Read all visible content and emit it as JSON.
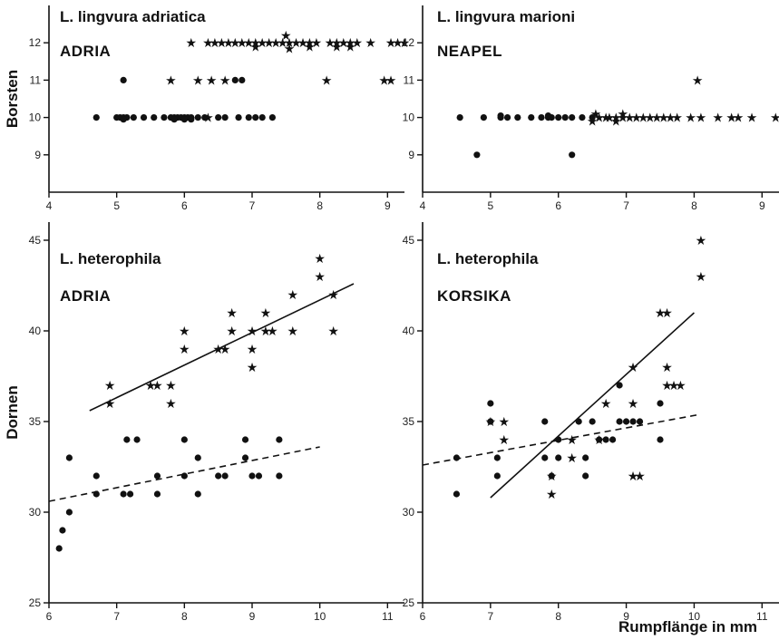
{
  "chart_data": [
    {
      "type": "scatter",
      "title": "L. lingvura adriatica",
      "subtitle": "ADRIA",
      "ylabel": "Borsten",
      "xlabel": "",
      "xlim": [
        4,
        9.25
      ],
      "ylim": [
        8,
        13
      ],
      "xticks": [
        4,
        5,
        6,
        7,
        8,
        9
      ],
      "yticks": [
        9,
        10,
        11,
        12
      ],
      "series": [
        {
          "marker": "circle",
          "points": [
            [
              4.7,
              10
            ],
            [
              5.0,
              10
            ],
            [
              5.05,
              10
            ],
            [
              5.1,
              10
            ],
            [
              5.15,
              10
            ],
            [
              5.25,
              10
            ],
            [
              5.4,
              10
            ],
            [
              5.55,
              10
            ],
            [
              5.7,
              10
            ],
            [
              5.8,
              10
            ],
            [
              5.85,
              10
            ],
            [
              5.9,
              10
            ],
            [
              5.95,
              10
            ],
            [
              6.0,
              10
            ],
            [
              6.05,
              10
            ],
            [
              6.1,
              10
            ],
            [
              6.2,
              10
            ],
            [
              6.3,
              10
            ],
            [
              6.5,
              10
            ],
            [
              6.6,
              10
            ],
            [
              6.8,
              10
            ],
            [
              6.95,
              10
            ],
            [
              7.05,
              10
            ],
            [
              7.15,
              10
            ],
            [
              7.3,
              10
            ],
            [
              5.1,
              11
            ],
            [
              6.75,
              11
            ],
            [
              6.85,
              11
            ],
            [
              5.1,
              9.95
            ],
            [
              5.85,
              9.95
            ],
            [
              6.0,
              9.95
            ],
            [
              6.1,
              9.95
            ]
          ]
        },
        {
          "marker": "star",
          "points": [
            [
              6.35,
              10
            ],
            [
              5.8,
              11
            ],
            [
              6.2,
              11
            ],
            [
              6.4,
              11
            ],
            [
              6.6,
              11
            ],
            [
              8.1,
              11
            ],
            [
              8.95,
              11
            ],
            [
              9.05,
              11
            ],
            [
              6.1,
              12
            ],
            [
              6.35,
              12
            ],
            [
              6.45,
              12
            ],
            [
              6.55,
              12
            ],
            [
              6.65,
              12
            ],
            [
              6.75,
              12
            ],
            [
              6.85,
              12
            ],
            [
              6.95,
              12
            ],
            [
              7.05,
              12
            ],
            [
              7.15,
              12
            ],
            [
              7.25,
              12
            ],
            [
              7.35,
              12
            ],
            [
              7.45,
              12
            ],
            [
              7.55,
              12
            ],
            [
              7.65,
              12
            ],
            [
              7.75,
              12
            ],
            [
              7.85,
              12
            ],
            [
              7.95,
              12
            ],
            [
              8.15,
              12
            ],
            [
              8.25,
              12
            ],
            [
              8.35,
              12
            ],
            [
              8.45,
              12
            ],
            [
              8.55,
              12
            ],
            [
              8.75,
              12
            ],
            [
              9.05,
              12
            ],
            [
              9.15,
              12
            ],
            [
              9.25,
              12
            ],
            [
              7.05,
              11.9
            ],
            [
              7.55,
              11.85
            ],
            [
              7.85,
              11.9
            ],
            [
              8.25,
              11.9
            ],
            [
              8.45,
              11.9
            ],
            [
              7.5,
              12.2
            ]
          ]
        }
      ]
    },
    {
      "type": "scatter",
      "title": "L. lingvura marioni",
      "subtitle": "NEAPEL",
      "ylabel": "",
      "xlabel": "",
      "xlim": [
        4,
        9.25
      ],
      "ylim": [
        8,
        13
      ],
      "xticks": [
        4,
        5,
        6,
        7,
        8,
        9
      ],
      "yticks": [
        9,
        10,
        11,
        12
      ],
      "series": [
        {
          "marker": "circle",
          "points": [
            [
              4.55,
              10
            ],
            [
              4.9,
              10
            ],
            [
              5.15,
              10
            ],
            [
              5.25,
              10
            ],
            [
              5.4,
              10
            ],
            [
              5.6,
              10
            ],
            [
              5.75,
              10
            ],
            [
              5.85,
              10
            ],
            [
              5.9,
              10
            ],
            [
              6.0,
              10
            ],
            [
              6.1,
              10
            ],
            [
              6.2,
              10
            ],
            [
              6.35,
              10
            ],
            [
              6.5,
              10
            ],
            [
              5.15,
              10.05
            ],
            [
              5.85,
              10.05
            ],
            [
              4.8,
              9
            ],
            [
              6.2,
              9
            ]
          ]
        },
        {
          "marker": "star",
          "points": [
            [
              6.6,
              10
            ],
            [
              6.7,
              10
            ],
            [
              6.75,
              10
            ],
            [
              6.85,
              10
            ],
            [
              6.95,
              10
            ],
            [
              7.05,
              10
            ],
            [
              7.15,
              10
            ],
            [
              7.25,
              10
            ],
            [
              7.35,
              10
            ],
            [
              7.45,
              10
            ],
            [
              7.55,
              10
            ],
            [
              7.65,
              10
            ],
            [
              7.75,
              10
            ],
            [
              7.95,
              10
            ],
            [
              8.1,
              10
            ],
            [
              8.35,
              10
            ],
            [
              8.55,
              10
            ],
            [
              8.65,
              10
            ],
            [
              8.85,
              10
            ],
            [
              9.2,
              10
            ],
            [
              6.5,
              9.9
            ],
            [
              6.85,
              9.9
            ],
            [
              6.55,
              10.1
            ],
            [
              6.95,
              10.1
            ],
            [
              8.05,
              11
            ]
          ]
        }
      ]
    },
    {
      "type": "scatter",
      "title": "L. heterophila",
      "subtitle": "ADRIA",
      "ylabel": "Dornen",
      "xlabel": "",
      "xlim": [
        6,
        11.25
      ],
      "ylim": [
        25,
        46
      ],
      "xticks": [
        6,
        7,
        8,
        9,
        10,
        11
      ],
      "yticks": [
        25,
        30,
        35,
        40,
        45
      ],
      "series": [
        {
          "marker": "circle",
          "points": [
            [
              6.15,
              28
            ],
            [
              6.2,
              29
            ],
            [
              6.3,
              30
            ],
            [
              6.3,
              33
            ],
            [
              6.7,
              32
            ],
            [
              6.7,
              31
            ],
            [
              7.1,
              31
            ],
            [
              7.2,
              31
            ],
            [
              7.15,
              34
            ],
            [
              7.3,
              34
            ],
            [
              7.6,
              31
            ],
            [
              7.6,
              32
            ],
            [
              8.0,
              32
            ],
            [
              8.0,
              34
            ],
            [
              8.2,
              31
            ],
            [
              8.2,
              33
            ],
            [
              8.5,
              32
            ],
            [
              8.6,
              32
            ],
            [
              8.9,
              34
            ],
            [
              8.9,
              33
            ],
            [
              9.0,
              32
            ],
            [
              9.1,
              32
            ],
            [
              9.4,
              32
            ],
            [
              9.4,
              34
            ]
          ]
        },
        {
          "marker": "star",
          "points": [
            [
              6.9,
              36
            ],
            [
              6.9,
              37
            ],
            [
              7.5,
              37
            ],
            [
              7.6,
              37
            ],
            [
              7.8,
              37
            ],
            [
              7.8,
              36
            ],
            [
              8.0,
              39
            ],
            [
              8.0,
              40
            ],
            [
              8.5,
              39
            ],
            [
              8.6,
              39
            ],
            [
              8.7,
              40
            ],
            [
              8.7,
              41
            ],
            [
              9.0,
              38
            ],
            [
              9.0,
              39
            ],
            [
              9.0,
              40
            ],
            [
              9.2,
              41
            ],
            [
              9.2,
              40
            ],
            [
              9.3,
              40
            ],
            [
              9.6,
              40
            ],
            [
              9.6,
              42
            ],
            [
              10.0,
              44
            ],
            [
              10.0,
              43
            ],
            [
              10.2,
              42
            ],
            [
              10.2,
              40
            ]
          ]
        }
      ],
      "trend_lines": [
        {
          "style": "solid",
          "from": [
            6.6,
            35.6
          ],
          "to": [
            10.5,
            42.6
          ]
        },
        {
          "style": "dashed",
          "from": [
            6.0,
            30.6
          ],
          "to": [
            10.0,
            33.6
          ]
        }
      ]
    },
    {
      "type": "scatter",
      "title": "L. heterophila",
      "subtitle": "KORSIKA",
      "ylabel": "",
      "xlabel": "Rumpflänge in mm",
      "xlim": [
        6,
        11.25
      ],
      "ylim": [
        25,
        46
      ],
      "xticks": [
        6,
        7,
        8,
        9,
        10,
        11
      ],
      "yticks": [
        25,
        30,
        35,
        40,
        45
      ],
      "series": [
        {
          "marker": "circle",
          "points": [
            [
              6.5,
              33
            ],
            [
              6.5,
              31
            ],
            [
              7.0,
              36
            ],
            [
              7.0,
              35
            ],
            [
              7.1,
              33
            ],
            [
              7.1,
              32
            ],
            [
              7.8,
              35
            ],
            [
              7.8,
              33
            ],
            [
              7.9,
              32
            ],
            [
              8.0,
              34
            ],
            [
              8.0,
              33
            ],
            [
              8.3,
              35
            ],
            [
              8.4,
              33
            ],
            [
              8.4,
              32
            ],
            [
              8.5,
              35
            ],
            [
              8.6,
              34
            ],
            [
              8.7,
              34
            ],
            [
              8.8,
              34
            ],
            [
              8.9,
              37
            ],
            [
              8.9,
              35
            ],
            [
              9.0,
              35
            ],
            [
              9.1,
              35
            ],
            [
              9.2,
              35
            ],
            [
              9.5,
              36
            ],
            [
              9.5,
              34
            ]
          ]
        },
        {
          "marker": "star",
          "points": [
            [
              7.0,
              35
            ],
            [
              7.2,
              35
            ],
            [
              7.2,
              34
            ],
            [
              7.9,
              32
            ],
            [
              7.9,
              31
            ],
            [
              8.2,
              34
            ],
            [
              8.2,
              33
            ],
            [
              8.6,
              34
            ],
            [
              8.7,
              36
            ],
            [
              9.1,
              38
            ],
            [
              9.1,
              36
            ],
            [
              9.1,
              32
            ],
            [
              9.2,
              32
            ],
            [
              9.5,
              41
            ],
            [
              9.6,
              41
            ],
            [
              9.6,
              38
            ],
            [
              9.6,
              37
            ],
            [
              9.7,
              37
            ],
            [
              9.8,
              37
            ],
            [
              10.1,
              45
            ],
            [
              10.1,
              43
            ]
          ]
        }
      ],
      "trend_lines": [
        {
          "style": "solid",
          "from": [
            7.0,
            30.8
          ],
          "to": [
            10.0,
            41.0
          ]
        },
        {
          "style": "dashed",
          "from": [
            6.0,
            32.6
          ],
          "to": [
            10.1,
            35.4
          ]
        }
      ]
    }
  ]
}
